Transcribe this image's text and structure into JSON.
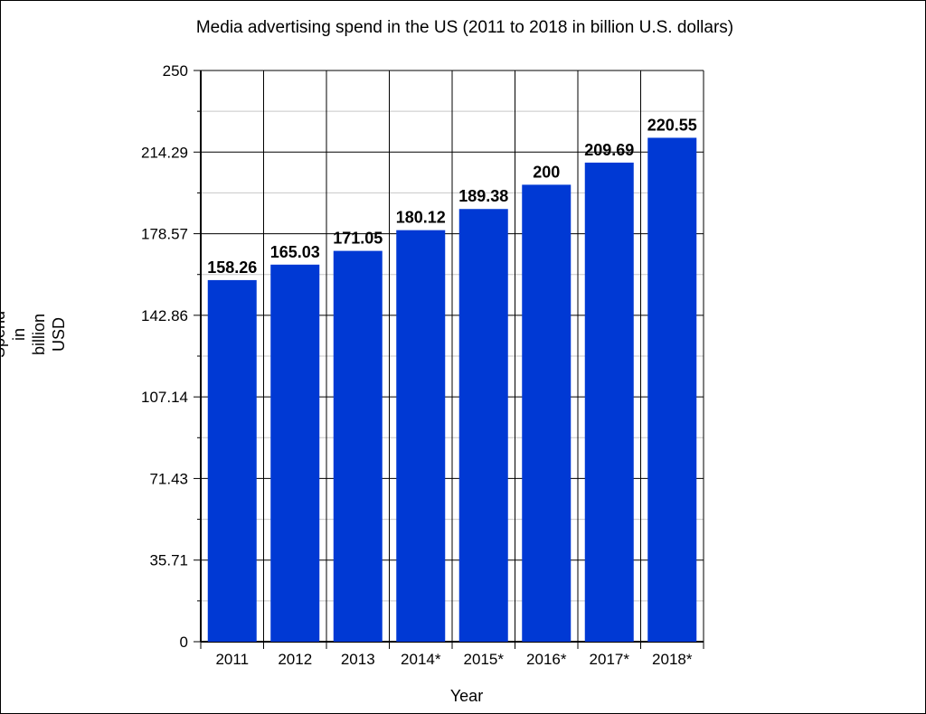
{
  "chart_data": {
    "type": "bar",
    "title": "Media advertising spend in the US (2011 to 2018 in billion U.S. dollars)",
    "xlabel": "Year",
    "ylabel": [
      "Spend",
      "in",
      "billion",
      "USD"
    ],
    "categories": [
      "2011",
      "2012",
      "2013",
      "2014*",
      "2015*",
      "2016*",
      "2017*",
      "2018*"
    ],
    "values": [
      158.26,
      165.03,
      171.05,
      180.12,
      189.38,
      200,
      209.69,
      220.55
    ],
    "data_labels": [
      "158.26",
      "165.03",
      "171.05",
      "180.12",
      "189.38",
      "200",
      "209.69",
      "220.55"
    ],
    "ylim": [
      0,
      250
    ],
    "yticks": [
      0,
      35.71,
      71.43,
      107.14,
      142.86,
      178.57,
      214.29,
      250
    ],
    "ytick_labels": [
      "0",
      "35.71",
      "71.43",
      "107.14",
      "142.86",
      "178.57",
      "214.29",
      "250"
    ],
    "bar_color": "#0039d4",
    "grid": true,
    "legend": "none"
  }
}
